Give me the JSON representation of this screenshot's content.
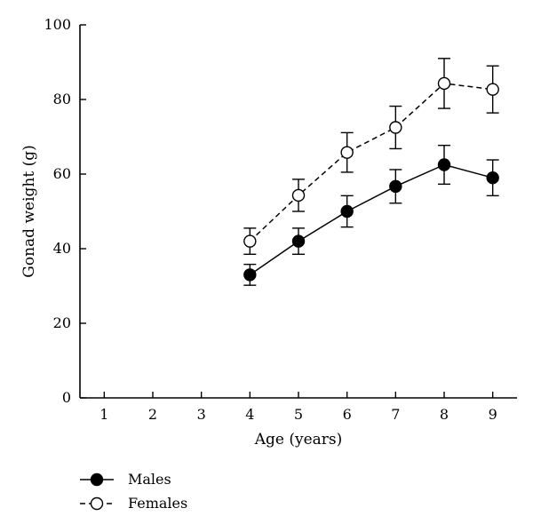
{
  "chart_data": {
    "type": "line",
    "title": "",
    "xlabel": "Age (years)",
    "ylabel": "Gonad weight (g)",
    "xlim": [
      0.5,
      9.5
    ],
    "ylim": [
      0,
      100
    ],
    "x_ticks": [
      1,
      2,
      3,
      4,
      5,
      6,
      7,
      8,
      9
    ],
    "y_ticks": [
      0,
      20,
      40,
      60,
      80,
      100
    ],
    "grid": false,
    "legend_position": "bottom-left",
    "series": [
      {
        "name": "Males",
        "marker": "filled-circle",
        "line_style": "solid",
        "color": "#000000",
        "x": [
          4,
          5,
          6,
          7,
          8,
          9
        ],
        "y": [
          33,
          42,
          50,
          56.7,
          62.5,
          59
        ],
        "error": [
          2.8,
          3.5,
          4.2,
          4.5,
          5.2,
          4.8
        ]
      },
      {
        "name": "Females",
        "marker": "open-circle",
        "line_style": "dashed",
        "color": "#000000",
        "x": [
          4,
          5,
          6,
          7,
          8,
          9
        ],
        "y": [
          42,
          54.3,
          65.8,
          72.5,
          84.3,
          82.7
        ],
        "error": [
          3.5,
          4.3,
          5.3,
          5.7,
          6.7,
          6.3
        ]
      }
    ]
  }
}
